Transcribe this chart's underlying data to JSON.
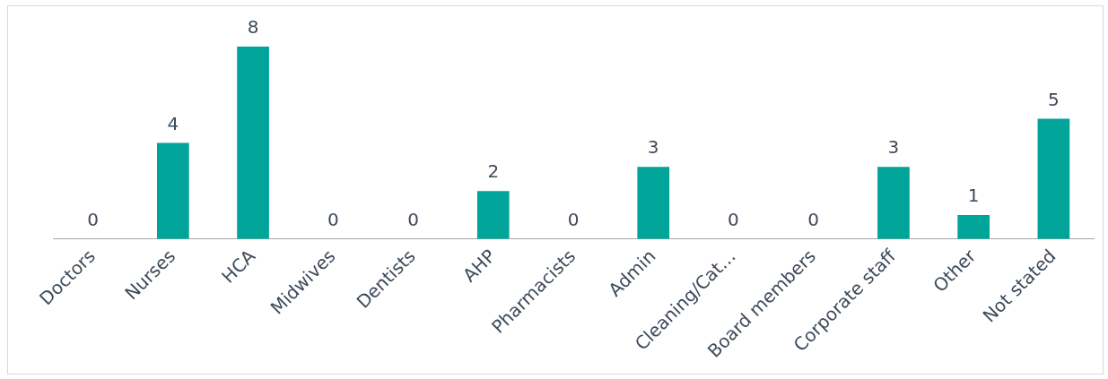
{
  "chart_data": {
    "type": "bar",
    "categories": [
      "Doctors",
      "Nurses",
      "HCA",
      "Midwives",
      "Dentists",
      "AHP",
      "Pharmacists",
      "Admin",
      "Cleaning/Cat…",
      "Board members",
      "Corporate staff",
      "Other",
      "Not stated"
    ],
    "values": [
      0,
      4,
      8,
      0,
      0,
      2,
      0,
      3,
      0,
      0,
      3,
      1,
      5
    ],
    "color": "#00a499",
    "data_labels": true,
    "grid": false,
    "legend": false
  }
}
